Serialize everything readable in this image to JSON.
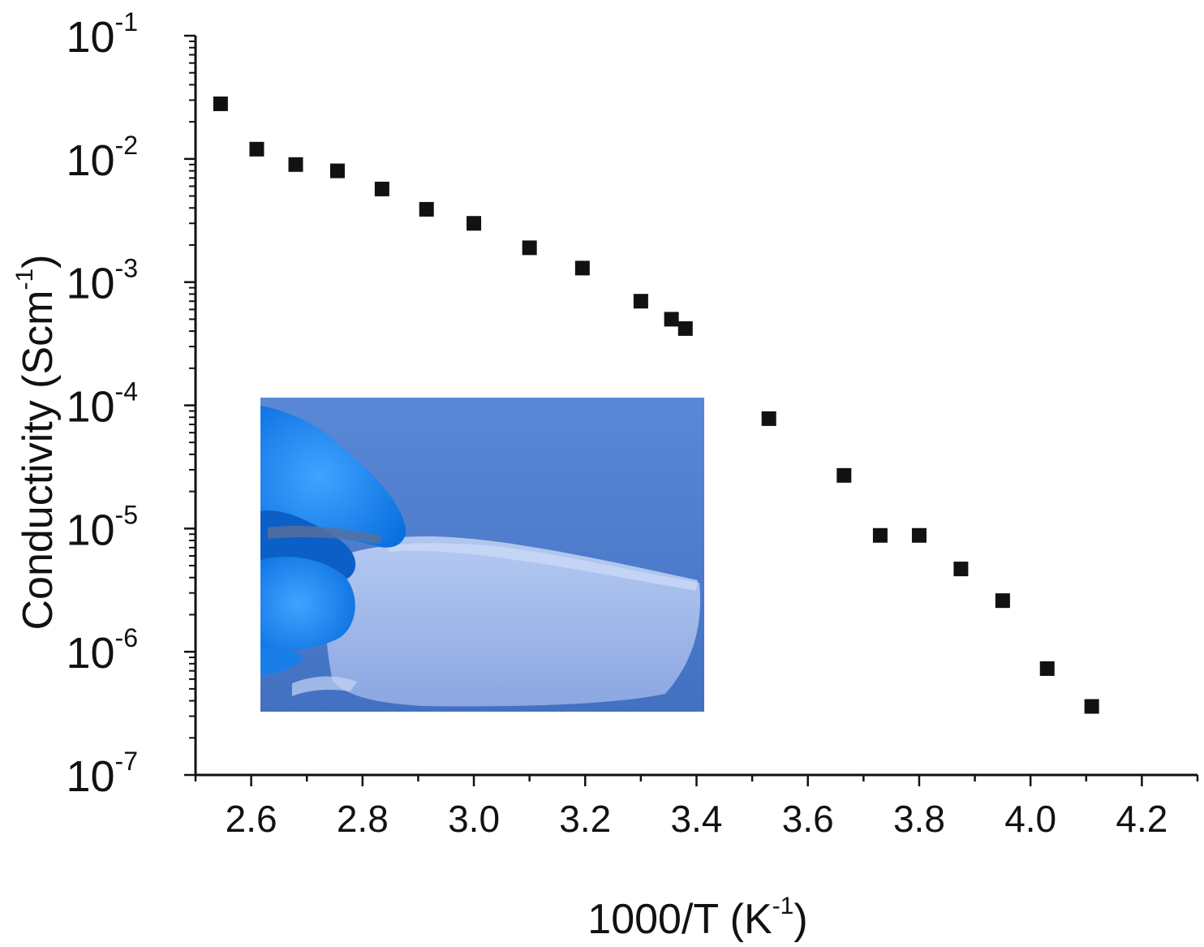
{
  "chart_data": {
    "type": "scatter",
    "title": "",
    "xlabel": {
      "base": "1000/T (K",
      "sup": "-1",
      "tail": ")"
    },
    "ylabel": {
      "base": "Conductivity (Scm",
      "sup": "-1",
      "tail": ")"
    },
    "xlim": [
      2.5,
      4.3
    ],
    "ylim": [
      1e-07,
      0.1
    ],
    "yscale": "log",
    "grid": false,
    "legend": "none",
    "x_ticks": [
      "2.6",
      "2.8",
      "3.0",
      "3.2",
      "3.4",
      "3.6",
      "3.8",
      "4.0",
      "4.2"
    ],
    "y_ticks": [
      {
        "base": "10",
        "exp": "-1"
      },
      {
        "base": "10",
        "exp": "-2"
      },
      {
        "base": "10",
        "exp": "-3"
      },
      {
        "base": "10",
        "exp": "-4"
      },
      {
        "base": "10",
        "exp": "-5"
      },
      {
        "base": "10",
        "exp": "-6"
      },
      {
        "base": "10",
        "exp": "-7"
      }
    ],
    "marker": "square",
    "marker_color": "#111111",
    "series": [
      {
        "x": [
          2.545,
          2.61,
          2.68,
          2.755,
          2.835,
          2.915,
          3.0,
          3.1,
          3.195,
          3.3,
          3.355,
          3.38,
          3.53,
          3.665,
          3.73,
          3.8,
          3.875,
          3.95,
          4.03,
          4.11
        ],
        "y": [
          0.028,
          0.012,
          0.009,
          0.008,
          0.0057,
          0.0039,
          0.003,
          0.0019,
          0.0013,
          0.0007,
          0.0005,
          0.00042,
          7.8e-05,
          2.7e-05,
          8.8e-06,
          8.8e-06,
          4.7e-06,
          2.6e-06,
          7.3e-07,
          3.6e-07
        ]
      }
    ]
  },
  "inset_photo": {
    "description_icon": "photo-inset",
    "background_color": "#4f7fcf",
    "glove_color": "#1a8cff",
    "film_color": "#a9c0ee"
  }
}
